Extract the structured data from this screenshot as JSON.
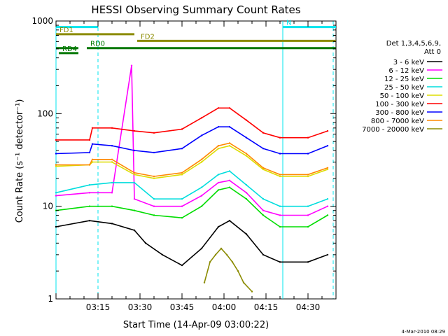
{
  "chart_data": {
    "type": "line",
    "title": "HESSI Observing Summary Count Rates",
    "xlabel": "Start Time (14-Apr-09 03:00:22)",
    "ylabel": "Count Rate (s⁻¹ detector⁻¹)",
    "ylim": [
      1,
      1000
    ],
    "yscale": "log",
    "xlim": [
      "03:00",
      "04:40"
    ],
    "x_ticks": [
      "03:15",
      "03:30",
      "03:45",
      "04:00",
      "04:15",
      "04:30"
    ],
    "y_ticks": [
      "1",
      "10",
      "100",
      "1000"
    ],
    "grid": false,
    "legend_header": [
      "Det 1,3,4,5,6,9,",
      "Att 0"
    ],
    "legend_position": "right",
    "footer": "4-Mar-2010 08:29",
    "series": [
      {
        "name": "3 - 6 keV",
        "color": "#000000",
        "x": [
          "03:00",
          "03:12",
          "03:20",
          "03:28",
          "03:32",
          "03:38",
          "03:45",
          "03:52",
          "03:58",
          "04:02",
          "04:08",
          "04:14",
          "04:20",
          "04:30",
          "04:37"
        ],
        "values": [
          6,
          7,
          6.5,
          5.5,
          4,
          3,
          2.3,
          3.5,
          6,
          7,
          5,
          3,
          2.5,
          2.5,
          3
        ]
      },
      {
        "name": "6 - 12 keV",
        "color": "#ff00ff",
        "x": [
          "03:00",
          "03:12",
          "03:20",
          "03:27",
          "03:28",
          "03:35",
          "03:45",
          "03:52",
          "03:58",
          "04:02",
          "04:08",
          "04:14",
          "04:20",
          "04:30",
          "04:37"
        ],
        "values": [
          13,
          14,
          14,
          330,
          12,
          10,
          10,
          13,
          18,
          19,
          14,
          9,
          8,
          8,
          10
        ]
      },
      {
        "name": "12 - 25 keV",
        "color": "#00dd00",
        "x": [
          "03:00",
          "03:12",
          "03:20",
          "03:28",
          "03:35",
          "03:45",
          "03:52",
          "03:58",
          "04:02",
          "04:08",
          "04:14",
          "04:20",
          "04:30",
          "04:37"
        ],
        "values": [
          9,
          10,
          10,
          9,
          8,
          7.5,
          10,
          15,
          16,
          12,
          8,
          6,
          6,
          8
        ]
      },
      {
        "name": "25 - 50 keV",
        "color": "#00dddd",
        "x": [
          "03:00",
          "03:12",
          "03:20",
          "03:28",
          "03:35",
          "03:45",
          "03:52",
          "03:58",
          "04:02",
          "04:08",
          "04:14",
          "04:20",
          "04:30",
          "04:37"
        ],
        "values": [
          14,
          17,
          18,
          18,
          12,
          12,
          16,
          22,
          24,
          17,
          12,
          10,
          10,
          12
        ]
      },
      {
        "name": "50 - 100 keV",
        "color": "#dddd00",
        "x": [
          "03:00",
          "03:12",
          "03:13",
          "03:20",
          "03:28",
          "03:35",
          "03:45",
          "03:52",
          "03:58",
          "04:02",
          "04:08",
          "04:14",
          "04:20",
          "04:30",
          "04:37"
        ],
        "values": [
          27,
          28,
          30,
          30,
          22,
          20,
          22,
          30,
          42,
          45,
          35,
          25,
          21,
          21,
          25
        ]
      },
      {
        "name": "100 - 300 keV",
        "color": "#ff0000",
        "x": [
          "03:00",
          "03:12",
          "03:13",
          "03:20",
          "03:28",
          "03:35",
          "03:45",
          "03:52",
          "03:58",
          "04:02",
          "04:08",
          "04:14",
          "04:20",
          "04:30",
          "04:37"
        ],
        "values": [
          52,
          52,
          70,
          70,
          65,
          62,
          68,
          90,
          115,
          115,
          85,
          62,
          55,
          55,
          65
        ]
      },
      {
        "name": "300 - 800 keV",
        "color": "#0000ff",
        "x": [
          "03:00",
          "03:12",
          "03:13",
          "03:20",
          "03:28",
          "03:35",
          "03:45",
          "03:52",
          "03:58",
          "04:02",
          "04:08",
          "04:14",
          "04:20",
          "04:30",
          "04:37"
        ],
        "values": [
          37,
          38,
          47,
          45,
          40,
          38,
          42,
          58,
          72,
          72,
          55,
          42,
          37,
          37,
          45
        ]
      },
      {
        "name": "800 - 7000 keV",
        "color": "#ff8800",
        "x": [
          "03:00",
          "03:12",
          "03:13",
          "03:20",
          "03:28",
          "03:35",
          "03:45",
          "03:52",
          "03:58",
          "04:02",
          "04:08",
          "04:14",
          "04:20",
          "04:30",
          "04:37"
        ],
        "values": [
          28,
          28,
          32,
          32,
          23,
          21,
          23,
          32,
          45,
          48,
          37,
          26,
          22,
          22,
          26
        ]
      },
      {
        "name": "7000 - 20000 keV",
        "color": "#8b8b00",
        "x": [
          "03:53",
          "03:55",
          "03:57",
          "03:59",
          "04:01",
          "04:03",
          "04:05",
          "04:07",
          "04:10"
        ],
        "values": [
          1.5,
          2.5,
          3,
          3.5,
          3,
          2.5,
          2,
          1.5,
          1.2
        ]
      }
    ],
    "state_bars": [
      {
        "label": "N",
        "color": "#00e5ee",
        "segments": [
          [
            "03:00",
            "03:15"
          ],
          [
            "04:21",
            "04:40"
          ]
        ],
        "level": 860
      },
      {
        "label": "FD1",
        "color": "#8b8b00",
        "segments": [
          [
            "03:00",
            "03:28"
          ]
        ],
        "level": 720
      },
      {
        "label": "FD2",
        "color": "#8b8b00",
        "segments": [
          [
            "03:29",
            "04:40"
          ]
        ],
        "level": 610
      },
      {
        "label": "RD0",
        "color": "#007700",
        "segments": [
          [
            "03:00",
            "03:08"
          ],
          [
            "03:11",
            "04:40"
          ]
        ],
        "level": 510
      },
      {
        "label": "RD4",
        "color": "#007700",
        "segments": [
          [
            "03:01",
            "03:08"
          ]
        ],
        "level": 450
      }
    ],
    "vertical_markers": [
      {
        "x": "03:00",
        "style": "solid",
        "color": "#00e5ee"
      },
      {
        "x": "03:15",
        "style": "dashed",
        "color": "#00e5ee"
      },
      {
        "x": "04:21",
        "style": "solid",
        "color": "#00e5ee"
      },
      {
        "x": "04:39",
        "style": "dashed",
        "color": "#00e5ee"
      }
    ]
  }
}
